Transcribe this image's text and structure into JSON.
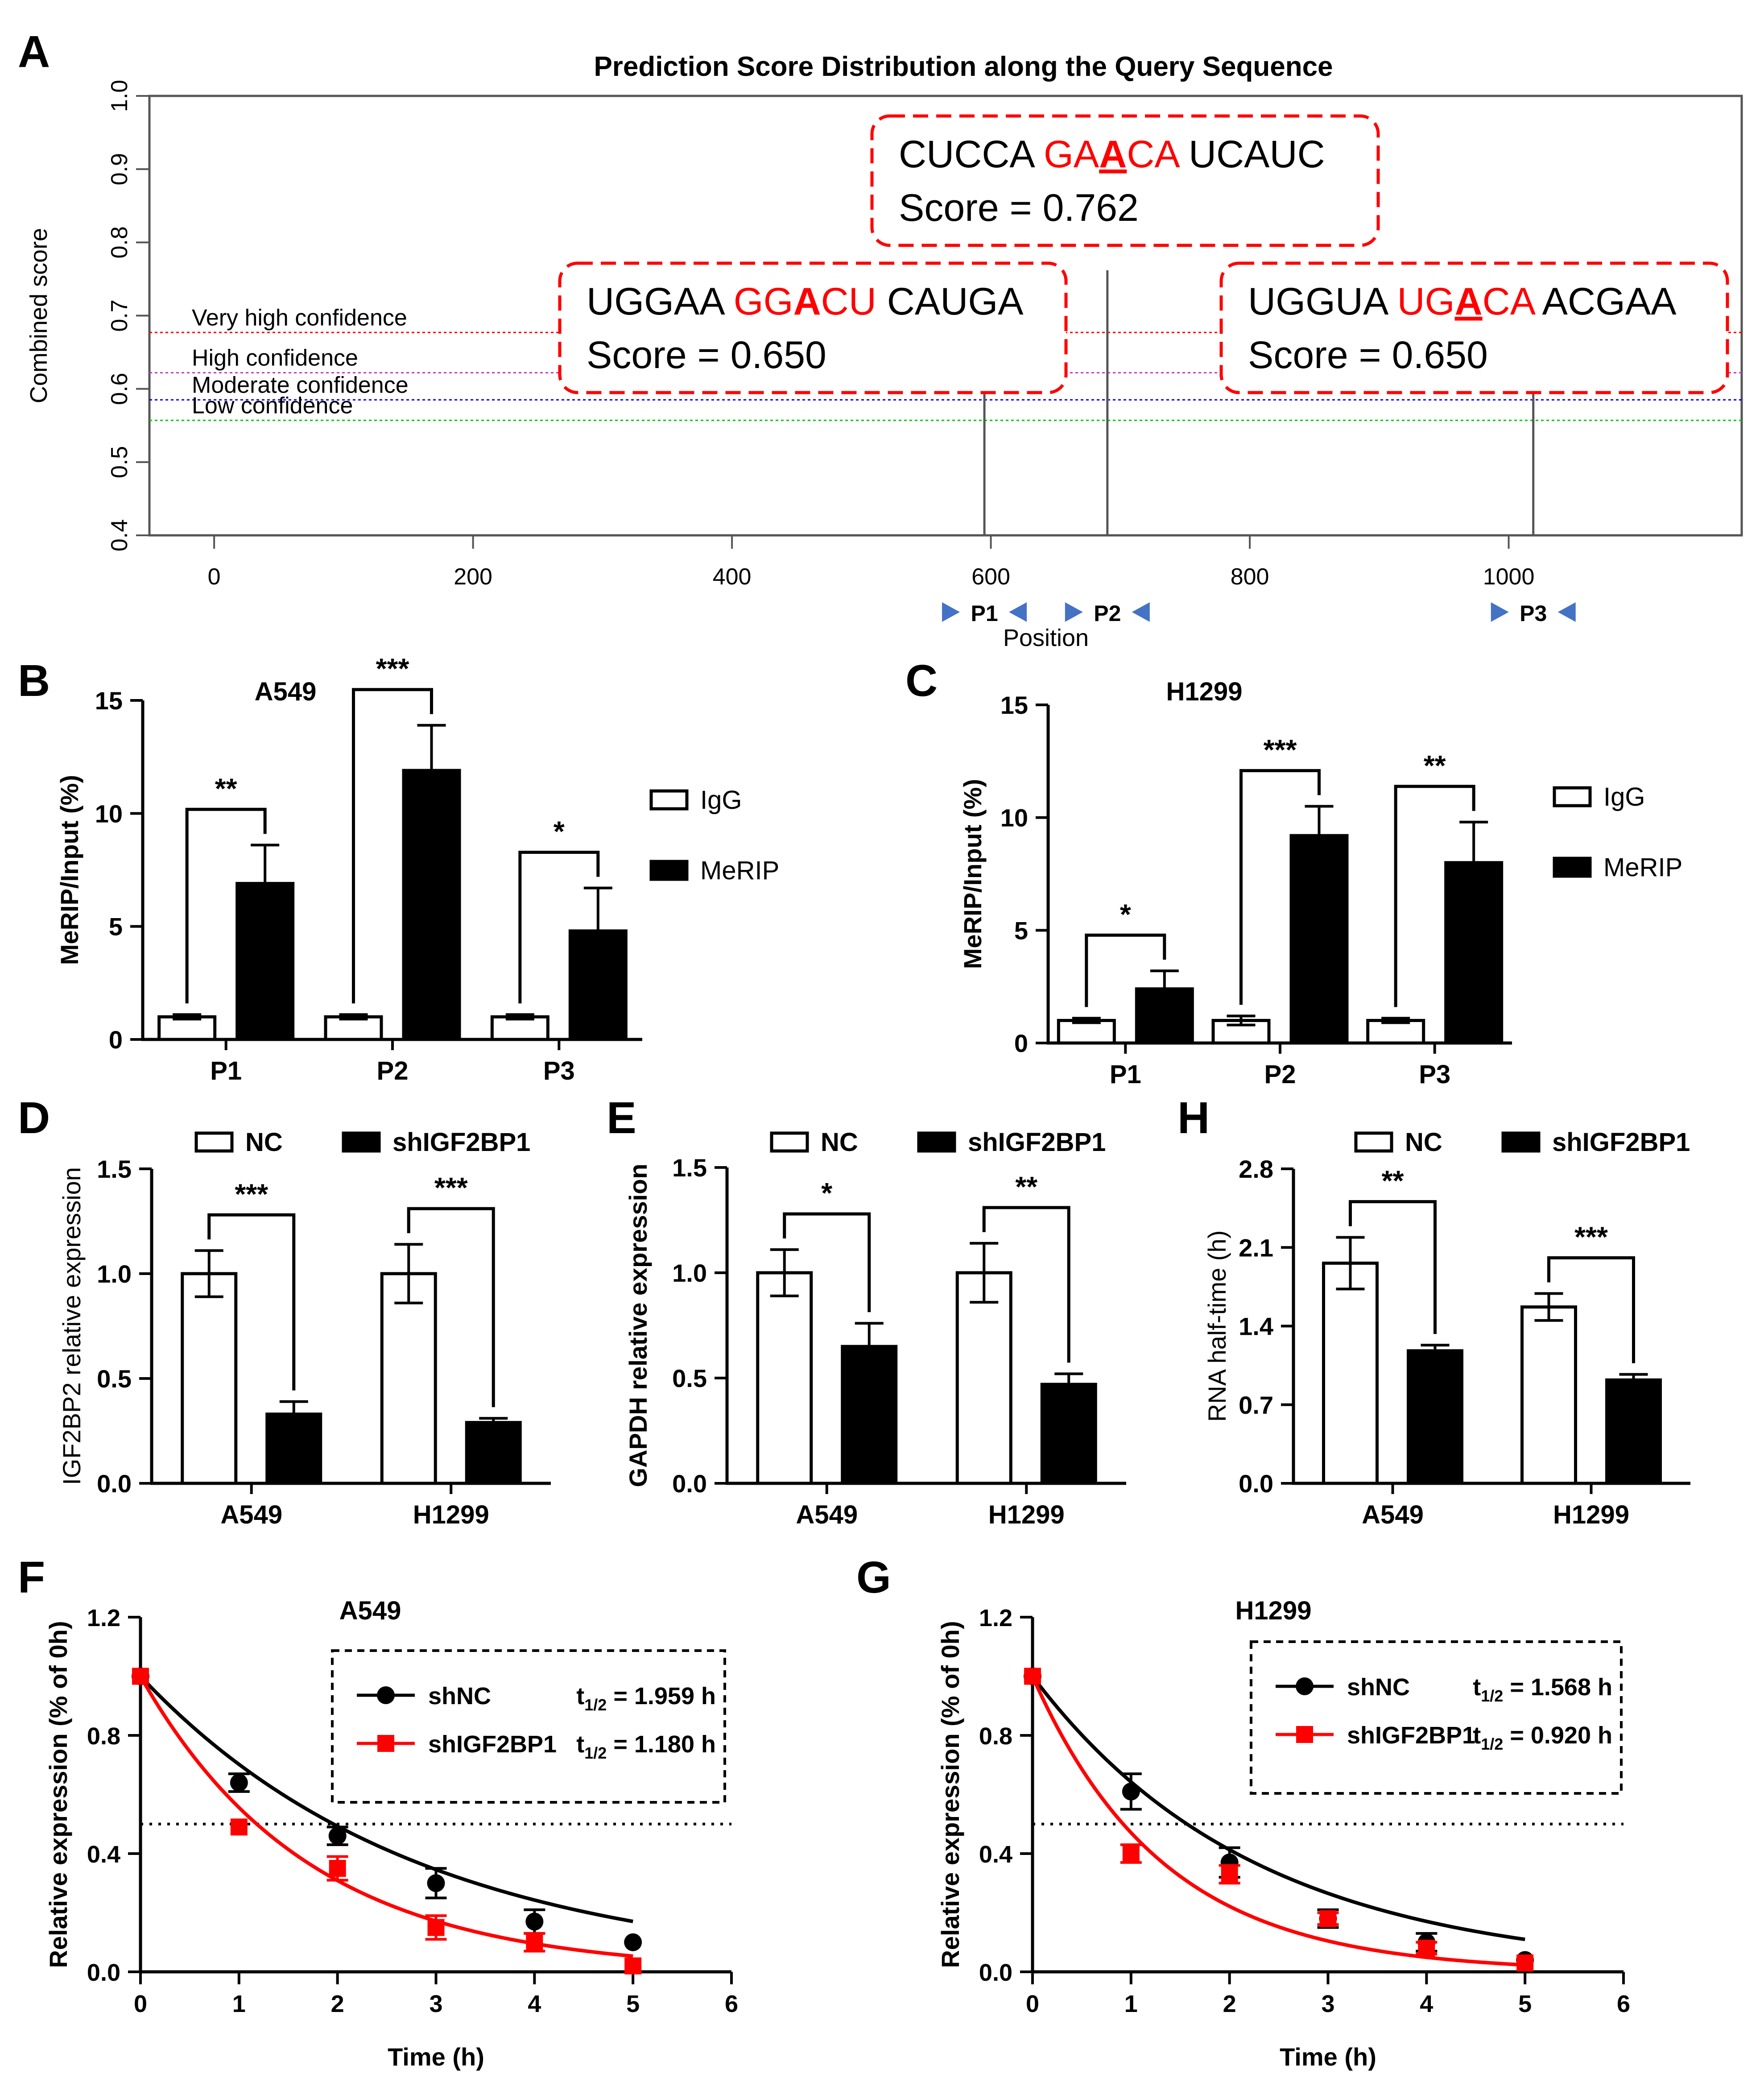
{
  "chart_data": [
    {
      "panel": "A",
      "type": "line",
      "title": "Prediction Score Distribution along the Query Sequence",
      "xlabel": "Position",
      "ylabel": "Combined score",
      "xticks": [
        0,
        200,
        400,
        600,
        800,
        1000
      ],
      "yticks": [
        "0.4",
        "0.5",
        "0.6",
        "0.7",
        "0.8",
        "0.9",
        "1.0"
      ],
      "xlim": [
        -50,
        1180
      ],
      "ylim": [
        0.4,
        1.0
      ],
      "thresholds": [
        {
          "name": "Very high confidence",
          "value": 0.677,
          "color": "#ff0000"
        },
        {
          "name": "High confidence",
          "value": 0.622,
          "color": "#cc33cc"
        },
        {
          "name": "Moderate confidence",
          "value": 0.585,
          "color": "#0000ff"
        },
        {
          "name": "Low confidence",
          "value": 0.557,
          "color": "#00cc00"
        }
      ],
      "sites": [
        {
          "x": 595,
          "score": 0.65
        },
        {
          "x": 690,
          "score": 0.762
        },
        {
          "x": 1019,
          "score": 0.65
        }
      ],
      "annotations": [
        {
          "pre": "CUCCA ",
          "m1": "GA",
          "center": "A",
          "m2": "CA",
          "post": " UCAUC",
          "score_text": "Score = 0.762",
          "underline": true
        },
        {
          "pre": "UGGAA ",
          "m1": "GG",
          "center": "A",
          "m2": "CU",
          "post": " CAUGA",
          "score_text": "Score = 0.650",
          "underline": false
        },
        {
          "pre": "UGGUA ",
          "m1": "UG",
          "center": "A",
          "m2": "CA",
          "post": " ACGAA",
          "score_text": "Score = 0.650",
          "underline": true
        }
      ],
      "primers": [
        {
          "name": "P1",
          "x": 595
        },
        {
          "name": "P2",
          "x": 690
        },
        {
          "name": "P3",
          "x": 1019
        }
      ]
    },
    {
      "panel": "B",
      "type": "bar",
      "title": "A549",
      "ylabel": "MeRIP/Input (%)",
      "categories": [
        "P1",
        "P2",
        "P3"
      ],
      "yticks": [
        "0",
        "5",
        "10",
        "15"
      ],
      "ylim": [
        0,
        15
      ],
      "series": [
        {
          "name": "IgG",
          "values": [
            1.0,
            1.0,
            1.0
          ],
          "errors": [
            0.1,
            0.1,
            0.1
          ]
        },
        {
          "name": "MeRIP",
          "values": [
            6.9,
            11.9,
            4.8
          ],
          "errors": [
            1.7,
            2.0,
            1.9
          ]
        }
      ],
      "significance": [
        "**",
        "***",
        "*"
      ]
    },
    {
      "panel": "C",
      "type": "bar",
      "title": "H1299",
      "ylabel": "MeRIP/Input (%)",
      "categories": [
        "P1",
        "P2",
        "P3"
      ],
      "yticks": [
        "0",
        "5",
        "10",
        "15"
      ],
      "ylim": [
        0,
        15
      ],
      "series": [
        {
          "name": "IgG",
          "values": [
            1.0,
            1.0,
            1.0
          ],
          "errors": [
            0.1,
            0.2,
            0.1
          ]
        },
        {
          "name": "MeRIP",
          "values": [
            2.4,
            9.2,
            8.0
          ],
          "errors": [
            0.8,
            1.3,
            1.8
          ]
        }
      ],
      "significance": [
        "*",
        "***",
        "**"
      ]
    },
    {
      "panel": "D",
      "type": "bar",
      "ylabel": "IGF2BP2 relative expression",
      "categories": [
        "A549",
        "H1299"
      ],
      "yticks": [
        "0.0",
        "0.5",
        "1.0",
        "1.5"
      ],
      "ylim": [
        0,
        1.5
      ],
      "series": [
        {
          "name": "NC",
          "values": [
            1.0,
            1.0
          ],
          "errors": [
            0.11,
            0.14
          ]
        },
        {
          "name": "shIGF2BP1",
          "values": [
            0.33,
            0.29
          ],
          "errors": [
            0.06,
            0.02
          ]
        }
      ],
      "significance": [
        "***",
        "***"
      ]
    },
    {
      "panel": "E",
      "type": "bar",
      "ylabel": "GAPDH relative expression",
      "categories": [
        "A549",
        "H1299"
      ],
      "yticks": [
        "0.0",
        "0.5",
        "1.0",
        "1.5"
      ],
      "ylim": [
        0,
        1.5
      ],
      "series": [
        {
          "name": "NC",
          "values": [
            1.0,
            1.0
          ],
          "errors": [
            0.11,
            0.14
          ]
        },
        {
          "name": "shIGF2BP1",
          "values": [
            0.65,
            0.47
          ],
          "errors": [
            0.11,
            0.05
          ]
        }
      ],
      "significance": [
        "*",
        "**"
      ]
    },
    {
      "panel": "H",
      "type": "bar",
      "ylabel": "RNA half-time (h)",
      "categories": [
        "A549",
        "H1299"
      ],
      "yticks": [
        "0.0",
        "0.7",
        "1.4",
        "2.1",
        "2.8"
      ],
      "ylim": [
        0,
        2.8
      ],
      "series": [
        {
          "name": "NC",
          "values": [
            1.96,
            1.57
          ],
          "errors": [
            0.23,
            0.12
          ]
        },
        {
          "name": "shIGF2BP1",
          "values": [
            1.18,
            0.92
          ],
          "errors": [
            0.05,
            0.05
          ]
        }
      ],
      "significance": [
        "**",
        "***"
      ]
    },
    {
      "panel": "F",
      "type": "scatter",
      "title": "A549",
      "xlabel": "Time (h)",
      "ylabel": "Relative expression (% of 0h)",
      "xticks": [
        "0",
        "1",
        "2",
        "3",
        "4",
        "5",
        "6"
      ],
      "yticks": [
        "0.0",
        "0.4",
        "0.8",
        "1.2"
      ],
      "xlim": [
        0,
        6
      ],
      "ylim": [
        0,
        1.2
      ],
      "reference_line": 0.5,
      "series": [
        {
          "name": "shNC",
          "color": "#000000",
          "marker": "circle",
          "half_life_label": "t",
          "half_life_sub": "1/2",
          "half_life_value": "= 1.959 h",
          "half_life": 1.959,
          "x": [
            0,
            1,
            2,
            3,
            4,
            5
          ],
          "y": [
            1.0,
            0.64,
            0.46,
            0.3,
            0.17,
            0.1
          ],
          "errors": [
            0.01,
            0.03,
            0.03,
            0.05,
            0.04,
            0.01
          ]
        },
        {
          "name": "shIGF2BP1",
          "color": "#ff0000",
          "marker": "square",
          "half_life_label": "t",
          "half_life_sub": "1/2",
          "half_life_value": "= 1.180 h",
          "half_life": 1.18,
          "x": [
            0,
            1,
            2,
            3,
            4,
            5
          ],
          "y": [
            1.0,
            0.49,
            0.35,
            0.15,
            0.1,
            0.02
          ],
          "errors": [
            0.01,
            0.01,
            0.04,
            0.04,
            0.03,
            0.01
          ]
        }
      ]
    },
    {
      "panel": "G",
      "type": "scatter",
      "title": "H1299",
      "xlabel": "Time (h)",
      "ylabel": "Relative expression (% of 0h)",
      "xticks": [
        "0",
        "1",
        "2",
        "3",
        "4",
        "5",
        "6"
      ],
      "yticks": [
        "0.0",
        "0.4",
        "0.8",
        "1.2"
      ],
      "xlim": [
        0,
        6
      ],
      "ylim": [
        0,
        1.2
      ],
      "reference_line": 0.5,
      "series": [
        {
          "name": "shNC",
          "color": "#000000",
          "marker": "circle",
          "half_life_label": "t",
          "half_life_sub": "1/2",
          "half_life_value": "= 1.568 h",
          "half_life": 1.568,
          "x": [
            0,
            1,
            2,
            3,
            4,
            5
          ],
          "y": [
            1.0,
            0.61,
            0.37,
            0.18,
            0.1,
            0.04
          ],
          "errors": [
            0.01,
            0.06,
            0.05,
            0.03,
            0.03,
            0.01
          ]
        },
        {
          "name": "shIGF2BP1",
          "color": "#ff0000",
          "marker": "square",
          "half_life_label": "t",
          "half_life_sub": "1/2",
          "half_life_value": "= 0.920 h",
          "half_life": 0.92,
          "x": [
            0,
            1,
            2,
            3,
            4,
            5
          ],
          "y": [
            1.0,
            0.4,
            0.33,
            0.18,
            0.08,
            0.03
          ],
          "errors": [
            0.01,
            0.03,
            0.03,
            0.02,
            0.02,
            0.01
          ]
        }
      ]
    }
  ]
}
